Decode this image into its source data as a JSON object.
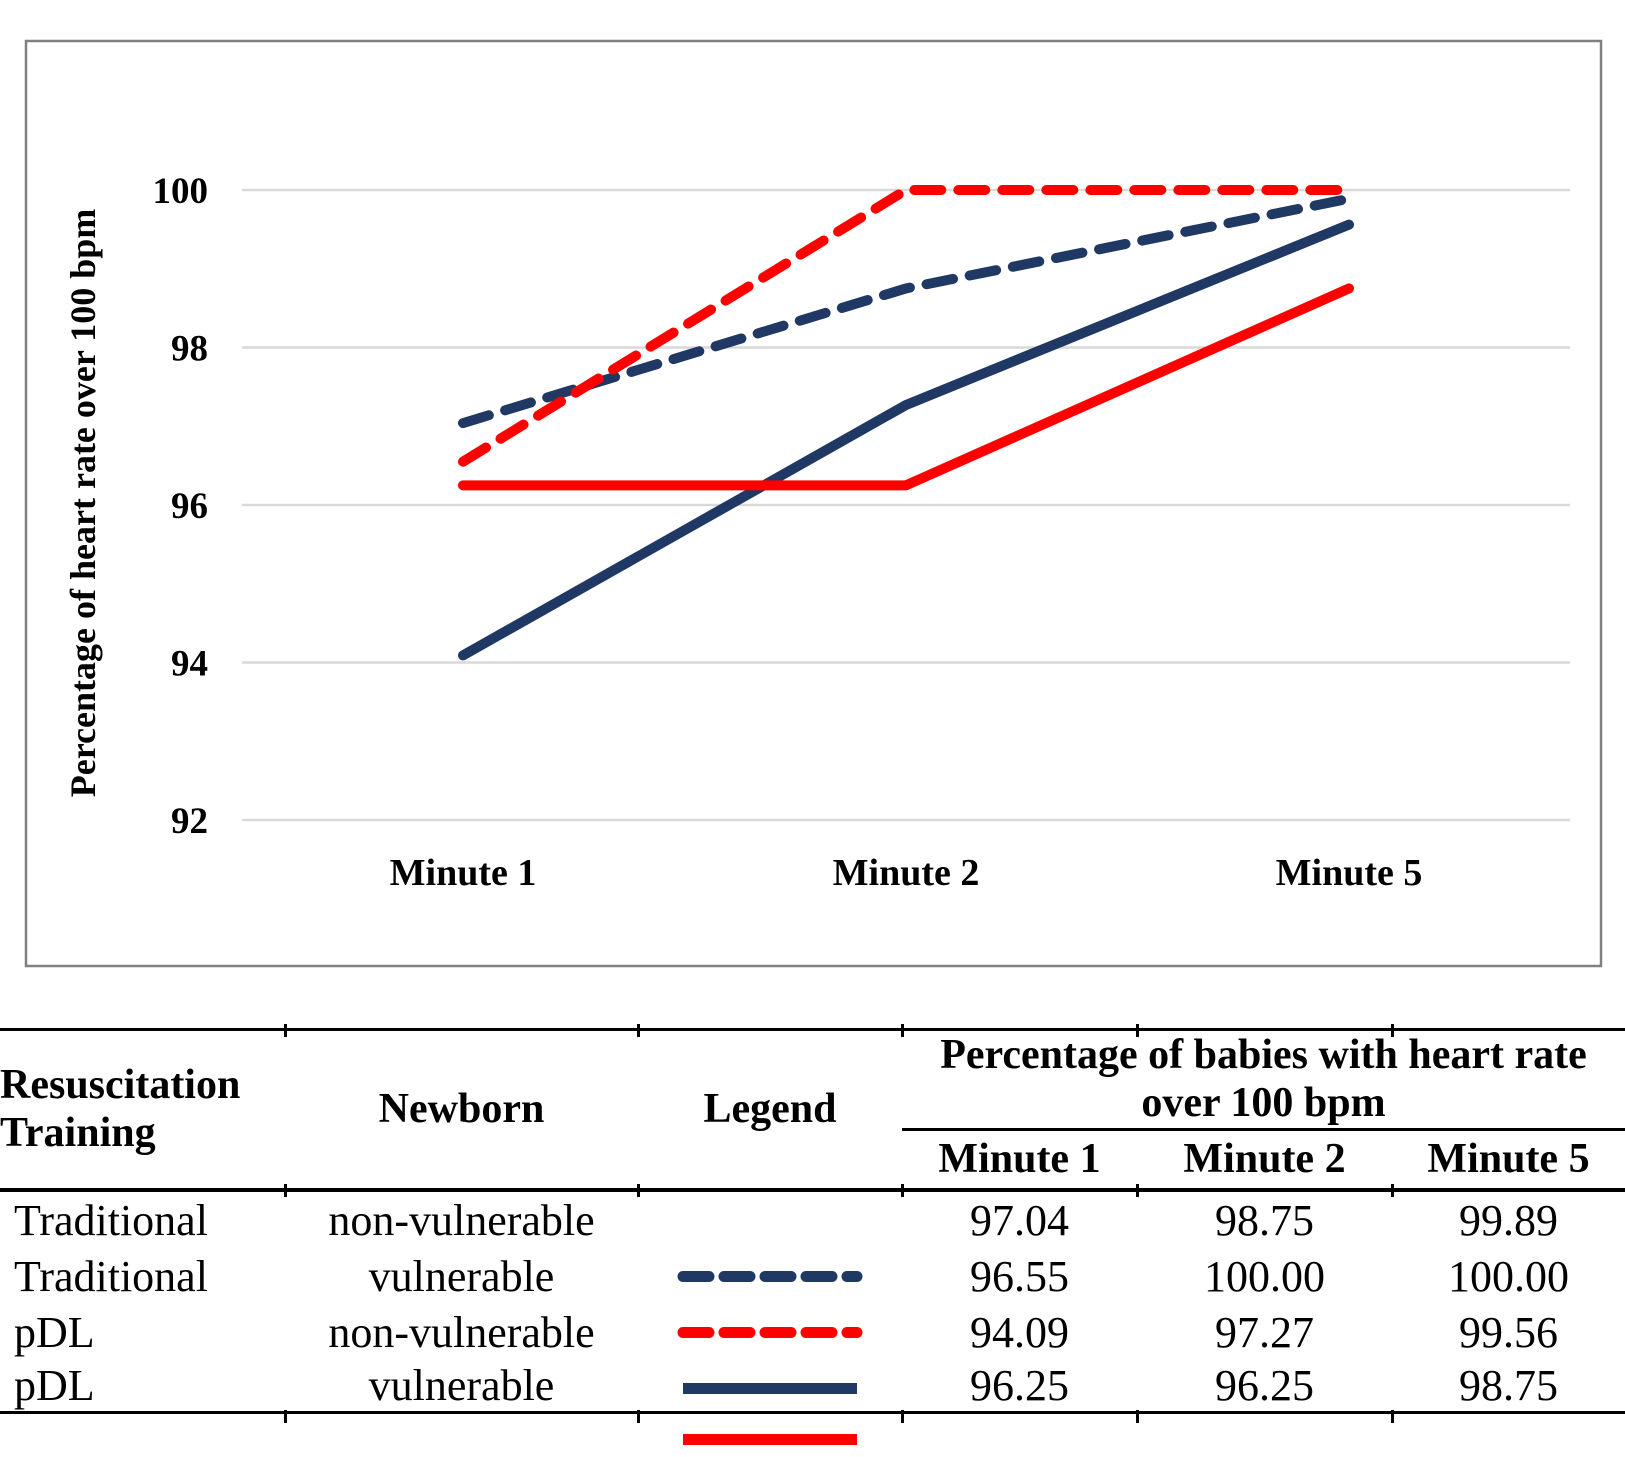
{
  "colors": {
    "navy": "#1F3864",
    "red": "#FF0000",
    "gridline": "#D9D9D9",
    "chart_border": "#808080",
    "text": "#000000"
  },
  "chart_data": {
    "type": "line",
    "title": "",
    "ylabel": "Percentage of heart rate over 100 bpm",
    "xlabel": "",
    "categories": [
      "Minute 1",
      "Minute 2",
      "Minute 5"
    ],
    "y_ticks": [
      100,
      98,
      96,
      94,
      92
    ],
    "ylim": [
      92,
      100
    ],
    "grid": true,
    "legend_position": "table-below",
    "series": [
      {
        "name": "Traditional non-vulnerable",
        "style": "dashed",
        "color": "#1F3864",
        "values": [
          97.04,
          98.75,
          99.89
        ]
      },
      {
        "name": "Traditional vulnerable",
        "style": "dashed",
        "color": "#FF0000",
        "values": [
          96.55,
          100.0,
          100.0
        ]
      },
      {
        "name": "pDL non-vulnerable",
        "style": "solid",
        "color": "#1F3864",
        "values": [
          94.09,
          97.27,
          99.56
        ]
      },
      {
        "name": "pDL vulnerable",
        "style": "solid",
        "color": "#FF0000",
        "values": [
          96.25,
          96.25,
          98.75
        ]
      }
    ]
  },
  "table": {
    "col1_header": "Resuscitation Training",
    "col2_header": "Newborn",
    "col3_header": "Legend",
    "spanner_line1": "Percentage of babies with heart rate",
    "spanner_line2": "over 100 bpm",
    "minute_headers": [
      "Minute 1",
      "Minute 2",
      "Minute 5"
    ],
    "rows": [
      {
        "training": "Traditional",
        "newborn": "non-vulnerable",
        "legend_style": "dashed",
        "legend_color": "#1F3864",
        "m1": "97.04",
        "m2": "98.75",
        "m5": "99.89"
      },
      {
        "training": "Traditional",
        "newborn": "vulnerable",
        "legend_style": "dashed",
        "legend_color": "#FF0000",
        "m1": "96.55",
        "m2": "100.00",
        "m5": "100.00"
      },
      {
        "training": "pDL",
        "newborn": "non-vulnerable",
        "legend_style": "solid",
        "legend_color": "#1F3864",
        "m1": "94.09",
        "m2": "97.27",
        "m5": "99.56"
      },
      {
        "training": "pDL",
        "newborn": "vulnerable",
        "legend_style": "solid",
        "legend_color": "#FF0000",
        "m1": "96.25",
        "m2": "96.25",
        "m5": "98.75"
      }
    ]
  }
}
